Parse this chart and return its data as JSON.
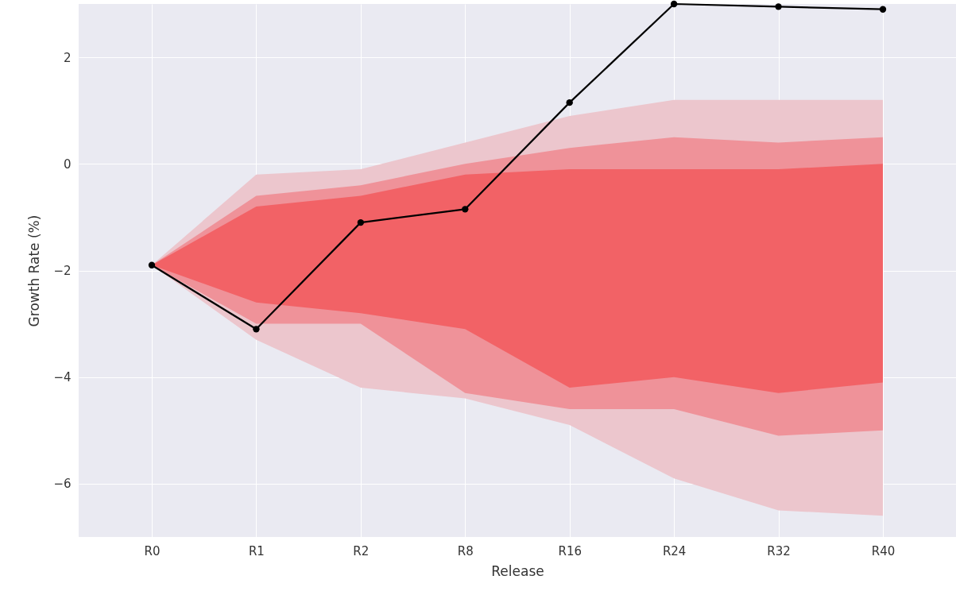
{
  "chart_data": {
    "type": "line",
    "xlabel": "Release",
    "ylabel": "Growth Rate (%)",
    "categories": [
      "R0",
      "R1",
      "R2",
      "R8",
      "R16",
      "R24",
      "R32",
      "R40"
    ],
    "series": [
      {
        "type": "area",
        "color": "#ecc6cd",
        "values": [
          null,
          null,
          null,
          null,
          null,
          null,
          null,
          null
        ],
        "lower": [
          -1.9,
          -3.3,
          -4.2,
          -4.4,
          -4.9,
          -5.9,
          -6.5,
          -6.6
        ],
        "upper": [
          -1.9,
          -0.2,
          -0.1,
          0.4,
          0.9,
          1.2,
          1.2,
          1.2
        ]
      },
      {
        "type": "area",
        "color": "#ef9299",
        "values": [
          null,
          null,
          null,
          null,
          null,
          null,
          null,
          null
        ],
        "lower": [
          -1.9,
          -3.0,
          -3.0,
          -4.3,
          -4.6,
          -4.6,
          -5.1,
          -5.0
        ],
        "upper": [
          -1.9,
          -0.6,
          -0.4,
          0.0,
          0.3,
          0.5,
          0.4,
          0.5
        ]
      },
      {
        "type": "area",
        "color": "#f26266",
        "values": [
          null,
          null,
          null,
          null,
          null,
          null,
          null,
          null
        ],
        "lower": [
          -1.9,
          -2.6,
          -2.8,
          -3.1,
          -4.2,
          -4.0,
          -4.3,
          -4.1
        ],
        "upper": [
          -1.9,
          -0.8,
          -0.6,
          -0.2,
          -0.1,
          -0.1,
          -0.1,
          0.0
        ]
      },
      {
        "type": "line",
        "color": "#000000",
        "marker": "circle",
        "values": [
          -1.9,
          -3.1,
          -1.1,
          -0.85,
          1.15,
          3.0,
          2.95,
          2.9
        ]
      }
    ],
    "ylim": [
      -7,
      3
    ],
    "yticks": [
      -6,
      -4,
      -2,
      0,
      2
    ],
    "grid": true
  }
}
